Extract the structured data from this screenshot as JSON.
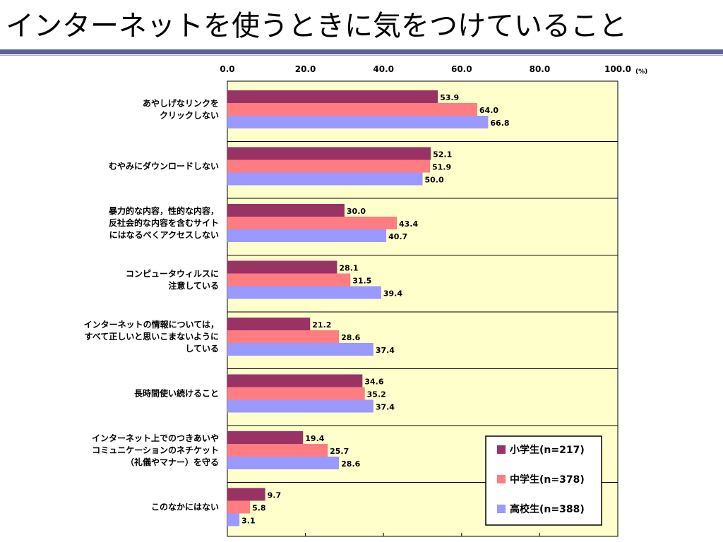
{
  "slide": {
    "title": "インターネットを使うときに気をつけていること"
  },
  "chart_data": {
    "type": "bar",
    "orientation": "horizontal",
    "unit_label": "(%)",
    "xlim": [
      0,
      100
    ],
    "x_ticks": [
      "0.0",
      "20.0",
      "40.0",
      "60.0",
      "80.0",
      "100.0"
    ],
    "grid": false,
    "legend_position": "bottom-right",
    "categories": [
      [
        "あやしげなリンクを",
        "クリックしない"
      ],
      [
        "むやみにダウンロードしない"
      ],
      [
        "暴力的な内容，性的な内容，",
        "反社会的な内容を含むサイト",
        "にはなるべくアクセスしない"
      ],
      [
        "コンピュータウィルスに",
        "注意している"
      ],
      [
        "インターネットの情報については，",
        "すべて正しいと思いこまないように",
        "している"
      ],
      [
        "長時間使い続けること"
      ],
      [
        "インターネット上でのつきあいや",
        "コミュニケーションのネチケット",
        "（礼儀やマナー）を守る"
      ],
      [
        "このなかにはない"
      ]
    ],
    "series": [
      {
        "name": "小学生(n=217)",
        "color": "#993366",
        "values": [
          53.9,
          52.1,
          30.0,
          28.1,
          21.2,
          34.6,
          19.4,
          9.7
        ]
      },
      {
        "name": "中学生(n=378)",
        "color": "#ff7c80",
        "values": [
          64.0,
          51.9,
          43.4,
          31.5,
          28.6,
          35.2,
          25.7,
          5.8
        ]
      },
      {
        "name": "高校生(n=388)",
        "color": "#9999ff",
        "values": [
          66.8,
          50.0,
          40.7,
          39.4,
          37.4,
          37.4,
          28.6,
          3.1
        ]
      }
    ],
    "plot_background": "#ffffcc"
  }
}
